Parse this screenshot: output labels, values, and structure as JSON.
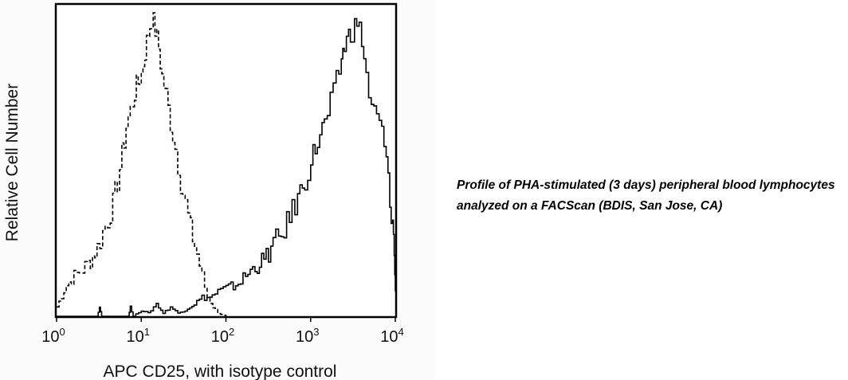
{
  "caption": "Profile of PHA-stimulated (3 days) peripheral blood lymphocytes analyzed on a FACScan (BDIS, San Jose, CA)",
  "chart_data": {
    "type": "line",
    "title": "",
    "xlabel": "APC CD25, with isotype control",
    "ylabel": "Relative Cell Number",
    "x_scale": "log",
    "xlim": [
      1,
      10000
    ],
    "ylim": [
      0,
      100
    ],
    "grid": false,
    "legend": "none",
    "x_ticks": [
      {
        "base": "10",
        "exp": "0",
        "value": 1
      },
      {
        "base": "10",
        "exp": "1",
        "value": 10
      },
      {
        "base": "10",
        "exp": "2",
        "value": 100
      },
      {
        "base": "10",
        "exp": "3",
        "value": 1000
      },
      {
        "base": "10",
        "exp": "4",
        "value": 10000
      }
    ],
    "series": [
      {
        "style": "dashed",
        "color": "#000000",
        "points": [
          [
            1.0,
            3
          ],
          [
            1.3,
            10
          ],
          [
            1.6,
            13
          ],
          [
            2.0,
            15
          ],
          [
            2.5,
            18
          ],
          [
            3.0,
            22
          ],
          [
            3.5,
            27
          ],
          [
            4.0,
            31
          ],
          [
            4.6,
            36
          ],
          [
            5.2,
            43
          ],
          [
            5.9,
            52
          ],
          [
            6.6,
            61
          ],
          [
            7.4,
            66
          ],
          [
            8.3,
            72
          ],
          [
            9.2,
            75
          ],
          [
            10.0,
            78
          ],
          [
            11.0,
            85
          ],
          [
            12.0,
            91
          ],
          [
            13.2,
            96
          ],
          [
            14.5,
            92
          ],
          [
            16.0,
            86
          ],
          [
            17.5,
            77
          ],
          [
            19.5,
            71
          ],
          [
            22.0,
            62
          ],
          [
            25.0,
            54
          ],
          [
            29.0,
            43
          ],
          [
            33.0,
            36
          ],
          [
            38.0,
            28
          ],
          [
            45.0,
            20
          ],
          [
            52.0,
            13
          ],
          [
            60.0,
            6
          ],
          [
            70.0,
            3
          ],
          [
            80.0,
            1
          ],
          [
            100.0,
            0
          ]
        ]
      },
      {
        "style": "solid",
        "color": "#000000",
        "points": [
          [
            1.0,
            0
          ],
          [
            3.0,
            0
          ],
          [
            3.2,
            3
          ],
          [
            3.4,
            0
          ],
          [
            7.0,
            0
          ],
          [
            7.4,
            3
          ],
          [
            8.0,
            0
          ],
          [
            10.0,
            2
          ],
          [
            12.0,
            1
          ],
          [
            15.0,
            4
          ],
          [
            18.0,
            1
          ],
          [
            22.0,
            3
          ],
          [
            27.0,
            1
          ],
          [
            33.0,
            2
          ],
          [
            42.0,
            4
          ],
          [
            52.0,
            6
          ],
          [
            64.0,
            6
          ],
          [
            80.0,
            8
          ],
          [
            100.0,
            9
          ],
          [
            130.0,
            10
          ],
          [
            170.0,
            13
          ],
          [
            220.0,
            16
          ],
          [
            280.0,
            18
          ],
          [
            360.0,
            23
          ],
          [
            450.0,
            26
          ],
          [
            560.0,
            32
          ],
          [
            700.0,
            38
          ],
          [
            850.0,
            44
          ],
          [
            1000.0,
            50
          ],
          [
            1200.0,
            56
          ],
          [
            1450.0,
            62
          ],
          [
            1700.0,
            68
          ],
          [
            2000.0,
            75
          ],
          [
            2300.0,
            83
          ],
          [
            2500.0,
            87
          ],
          [
            2800.0,
            90
          ],
          [
            3100.0,
            92
          ],
          [
            3500.0,
            94
          ],
          [
            4000.0,
            89
          ],
          [
            4500.0,
            77
          ],
          [
            5200.0,
            66
          ],
          [
            6000.0,
            64
          ],
          [
            6900.0,
            59
          ],
          [
            7800.0,
            50
          ],
          [
            8600.0,
            36
          ],
          [
            9300.0,
            30
          ],
          [
            9700.0,
            20
          ],
          [
            10000.0,
            8
          ]
        ]
      }
    ]
  }
}
